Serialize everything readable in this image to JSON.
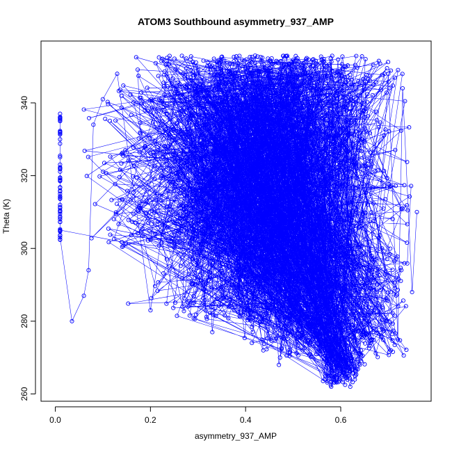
{
  "chart_data": {
    "type": "scatter",
    "title": "ATOM3 Southbound asymmetry_937_AMP",
    "xlabel": "asymmetry_937_AMP",
    "ylabel": "Theta (K)",
    "xlim": [
      -0.03,
      0.79
    ],
    "ylim": [
      258,
      357
    ],
    "xticks": [
      0.0,
      0.2,
      0.4,
      0.6
    ],
    "xtick_labels": [
      "0.0",
      "0.2",
      "0.4",
      "0.6"
    ],
    "yticks": [
      260,
      280,
      300,
      320,
      340
    ],
    "ytick_labels": [
      "260",
      "280",
      "300",
      "320",
      "340"
    ],
    "grid": false,
    "legend": "none",
    "series": [
      {
        "color": "#0000ff",
        "marker": "open-circle",
        "connected": true,
        "description_points": [
          {
            "x": 0.01,
            "y": 337
          },
          {
            "x": 0.01,
            "y": 330
          },
          {
            "x": 0.01,
            "y": 322
          },
          {
            "x": 0.01,
            "y": 315
          },
          {
            "x": 0.01,
            "y": 308
          },
          {
            "x": 0.01,
            "y": 303
          },
          {
            "x": 0.035,
            "y": 280
          },
          {
            "x": 0.06,
            "y": 287
          },
          {
            "x": 0.07,
            "y": 294
          },
          {
            "x": 0.08,
            "y": 334
          },
          {
            "x": 0.1,
            "y": 341
          },
          {
            "x": 0.13,
            "y": 348
          },
          {
            "x": 0.2,
            "y": 283
          },
          {
            "x": 0.26,
            "y": 336
          },
          {
            "x": 0.3,
            "y": 349
          },
          {
            "x": 0.33,
            "y": 277
          },
          {
            "x": 0.36,
            "y": 319
          },
          {
            "x": 0.38,
            "y": 306
          },
          {
            "x": 0.42,
            "y": 353
          },
          {
            "x": 0.44,
            "y": 330
          },
          {
            "x": 0.47,
            "y": 268
          },
          {
            "x": 0.5,
            "y": 295
          },
          {
            "x": 0.52,
            "y": 324
          },
          {
            "x": 0.55,
            "y": 345
          },
          {
            "x": 0.58,
            "y": 262
          },
          {
            "x": 0.6,
            "y": 271
          },
          {
            "x": 0.62,
            "y": 262
          },
          {
            "x": 0.64,
            "y": 301
          },
          {
            "x": 0.67,
            "y": 283
          },
          {
            "x": 0.7,
            "y": 348
          },
          {
            "x": 0.72,
            "y": 275
          },
          {
            "x": 0.73,
            "y": 344
          },
          {
            "x": 0.75,
            "y": 288
          },
          {
            "x": 0.76,
            "y": 310
          }
        ]
      }
    ]
  }
}
